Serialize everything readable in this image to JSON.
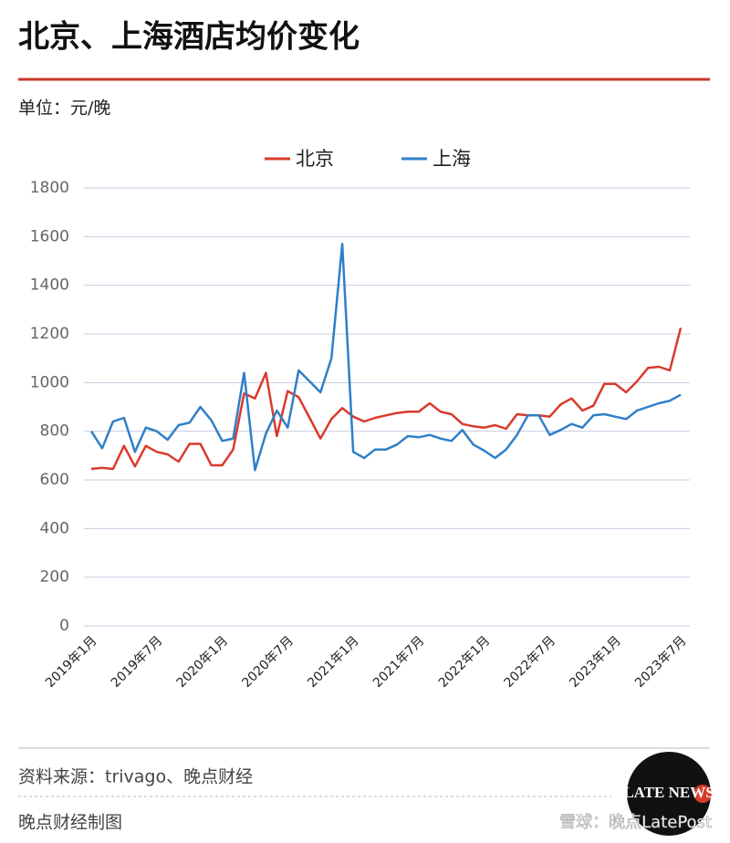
{
  "chart_data": {
    "type": "line",
    "title": "北京、上海酒店均价变化",
    "unit": "单位：元/晚",
    "source": "资料来源：trivago、晚点财经",
    "credit": "晚点财经制图",
    "logo": "LATE NEWS",
    "watermark": "雪球：晚点LatePost",
    "categories": [
      "2019年1月",
      null,
      null,
      null,
      null,
      null,
      "2019年7月",
      null,
      null,
      null,
      null,
      null,
      "2020年1月",
      null,
      null,
      null,
      null,
      null,
      "2020年7月",
      null,
      null,
      null,
      null,
      null,
      "2021年1月",
      null,
      null,
      null,
      null,
      null,
      "2021年7月",
      null,
      null,
      null,
      null,
      null,
      "2022年1月",
      null,
      null,
      null,
      null,
      null,
      "2022年7月",
      null,
      null,
      null,
      null,
      null,
      "2023年1月",
      null,
      null,
      null,
      null,
      null,
      "2023年7月"
    ],
    "series": [
      {
        "name": "北京",
        "color": "#d93a2b",
        "values": [
          645,
          650,
          645,
          740,
          655,
          740,
          715,
          705,
          675,
          748,
          748,
          660,
          660,
          725,
          955,
          935,
          1040,
          780,
          965,
          940,
          855,
          770,
          850,
          895,
          860,
          840,
          855,
          865,
          875,
          880,
          880,
          915,
          880,
          870,
          830,
          820,
          815,
          825,
          810,
          870,
          865,
          865,
          860,
          910,
          935,
          885,
          905,
          995,
          995,
          960,
          1005,
          1060,
          1065,
          1050,
          1225
        ]
      },
      {
        "name": "上海",
        "color": "#2f7fc8",
        "values": [
          800,
          730,
          840,
          855,
          715,
          815,
          800,
          765,
          825,
          835,
          900,
          845,
          760,
          770,
          1040,
          640,
          790,
          885,
          815,
          1050,
          1005,
          960,
          1100,
          1570,
          715,
          690,
          725,
          725,
          745,
          780,
          775,
          785,
          770,
          760,
          805,
          745,
          720,
          690,
          725,
          785,
          865,
          865,
          785,
          805,
          830,
          815,
          865,
          870,
          860,
          850,
          885,
          900,
          915,
          925,
          950
        ]
      }
    ],
    "ylim": [
      0,
      1800
    ],
    "yticks": [
      0,
      200,
      400,
      600,
      800,
      1000,
      1200,
      1400,
      1600,
      1800
    ],
    "grid": true
  }
}
